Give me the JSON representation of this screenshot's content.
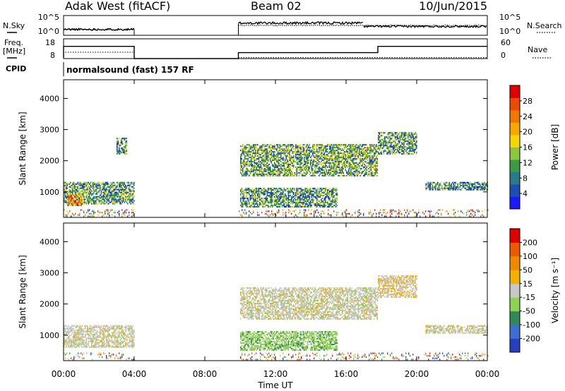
{
  "header": {
    "station": "Adak West (fitACF)",
    "beam": "Beam 02",
    "date": "10/Jun/2015"
  },
  "status_panels": {
    "nsky_label": "N.Sky",
    "nsearch_label": "N.Search",
    "noise_ticks": [
      "10^5",
      "10^0"
    ],
    "freq_label_line1": "Freq.",
    "freq_label_line2": "[MHz]",
    "freq_ticks": [
      "18",
      "8"
    ],
    "nave_label": "Nave",
    "nave_ticks": [
      "60",
      "0"
    ],
    "cpid_label": "CPID",
    "cpid_text": "normalsound (fast) 157 RF"
  },
  "chart_data": [
    {
      "type": "heatmap",
      "name": "power",
      "xlabel": "",
      "ylabel": "Slant Range [km]",
      "xlim": [
        0,
        24
      ],
      "ylim": [
        180,
        4600
      ],
      "yticks": [
        "1000",
        "2000",
        "3000",
        "4000"
      ],
      "colorbar": {
        "label": "Power [dB]",
        "ticks": [
          "4",
          "8",
          "12",
          "16",
          "20",
          "24",
          "28"
        ],
        "colors": [
          "#1a1aff",
          "#1e4fb0",
          "#2a7a8a",
          "#3c9a46",
          "#8cc63f",
          "#f5d600",
          "#f6a800",
          "#f07800",
          "#ec4a00",
          "#e00000"
        ],
        "range": [
          0,
          30
        ]
      },
      "data_gaps_hours": [
        [
          4.0,
          9.9
        ]
      ],
      "echo_regions": [
        {
          "t_start": 0.0,
          "t_end": 4.0,
          "range_low": 600,
          "range_high": 1300,
          "dominant_db": 10
        },
        {
          "t_start": 0.2,
          "t_end": 1.0,
          "range_low": 550,
          "range_high": 900,
          "dominant_db": 22
        },
        {
          "t_start": 3.0,
          "t_end": 3.6,
          "range_low": 2200,
          "range_high": 2700,
          "dominant_db": 10
        },
        {
          "t_start": 10.0,
          "t_end": 17.8,
          "range_low": 1500,
          "range_high": 2500,
          "dominant_db": 11
        },
        {
          "t_start": 10.0,
          "t_end": 15.5,
          "range_low": 500,
          "range_high": 1100,
          "dominant_db": 10
        },
        {
          "t_start": 17.8,
          "t_end": 20.0,
          "range_low": 2200,
          "range_high": 2900,
          "dominant_db": 10
        },
        {
          "t_start": 20.5,
          "t_end": 24.0,
          "range_low": 1050,
          "range_high": 1300,
          "dominant_db": 8
        }
      ]
    },
    {
      "type": "heatmap",
      "name": "velocity",
      "xlabel": "Time UT",
      "ylabel": "Slant Range [km]",
      "xlim": [
        0,
        24
      ],
      "ylim": [
        180,
        4600
      ],
      "xticks": [
        "00:00",
        "04:00",
        "08:00",
        "12:00",
        "16:00",
        "20:00",
        "00:00"
      ],
      "yticks": [
        "1000",
        "2000",
        "3000",
        "4000"
      ],
      "colorbar": {
        "label": "Velocity [m s⁻¹]",
        "ticks": [
          "200",
          "100",
          "50",
          "15",
          "-15",
          "-50",
          "-100",
          "-200"
        ],
        "colors": [
          "#2a3fc0",
          "#3b6fd0",
          "#2e8b57",
          "#8fd150",
          "#c8c8c8",
          "#f3b000",
          "#f08800",
          "#ec5a00",
          "#e00000"
        ],
        "range": [
          -250,
          250
        ]
      },
      "data_gaps_hours": [
        [
          4.0,
          9.9
        ]
      ],
      "echo_regions": [
        {
          "t_start": 0.0,
          "t_end": 4.0,
          "range_low": 600,
          "range_high": 1300,
          "dominant_ms": 0
        },
        {
          "t_start": 10.0,
          "t_end": 17.8,
          "range_low": 1500,
          "range_high": 2500,
          "dominant_ms": 0
        },
        {
          "t_start": 10.0,
          "t_end": 15.5,
          "range_low": 500,
          "range_high": 1100,
          "dominant_ms": -60
        },
        {
          "t_start": 17.8,
          "t_end": 20.0,
          "range_low": 2200,
          "range_high": 2900,
          "dominant_ms": 20
        },
        {
          "t_start": 20.5,
          "t_end": 24.0,
          "range_low": 1050,
          "range_high": 1300,
          "dominant_ms": 0
        }
      ]
    }
  ]
}
